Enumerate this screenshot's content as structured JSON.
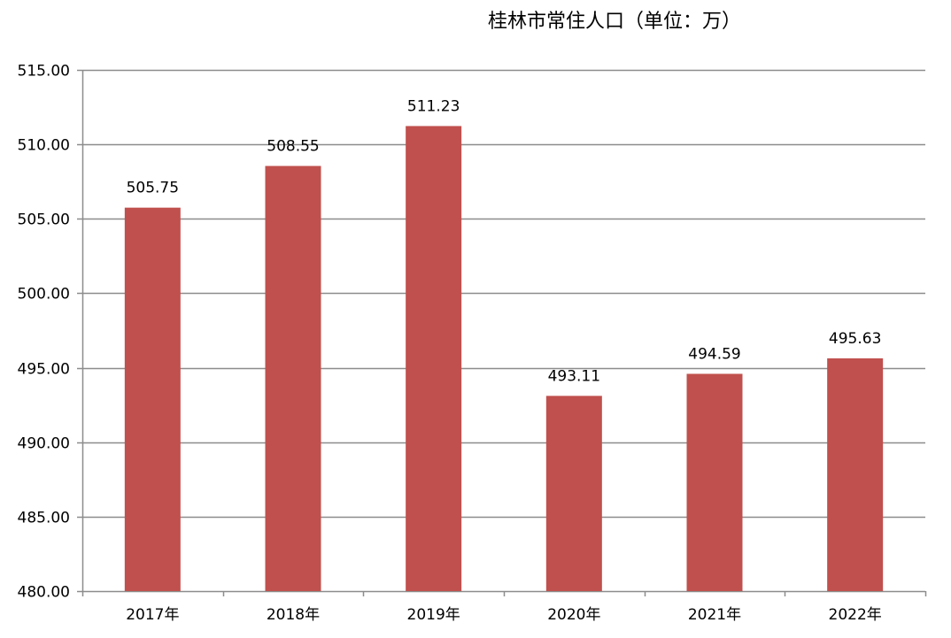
{
  "chart_data": {
    "type": "bar",
    "title": "桂林市常住人口（单位：万）",
    "categories": [
      "2017年",
      "2018年",
      "2019年",
      "2020年",
      "2021年",
      "2022年"
    ],
    "values": [
      505.75,
      508.55,
      511.23,
      493.11,
      494.59,
      495.63
    ],
    "data_labels": [
      "505.75",
      "508.55",
      "511.23",
      "493.11",
      "494.59",
      "495.63"
    ],
    "y_ticks": [
      "480.00",
      "485.00",
      "490.00",
      "495.00",
      "500.00",
      "505.00",
      "510.00",
      "515.00"
    ],
    "ylim": [
      480,
      515
    ],
    "xlabel": "",
    "ylabel": "",
    "grid": true,
    "legend": "none",
    "colors": {
      "bar": "#C0504D",
      "gridline": "#8C8C8C",
      "axis": "#8C8C8C"
    }
  }
}
